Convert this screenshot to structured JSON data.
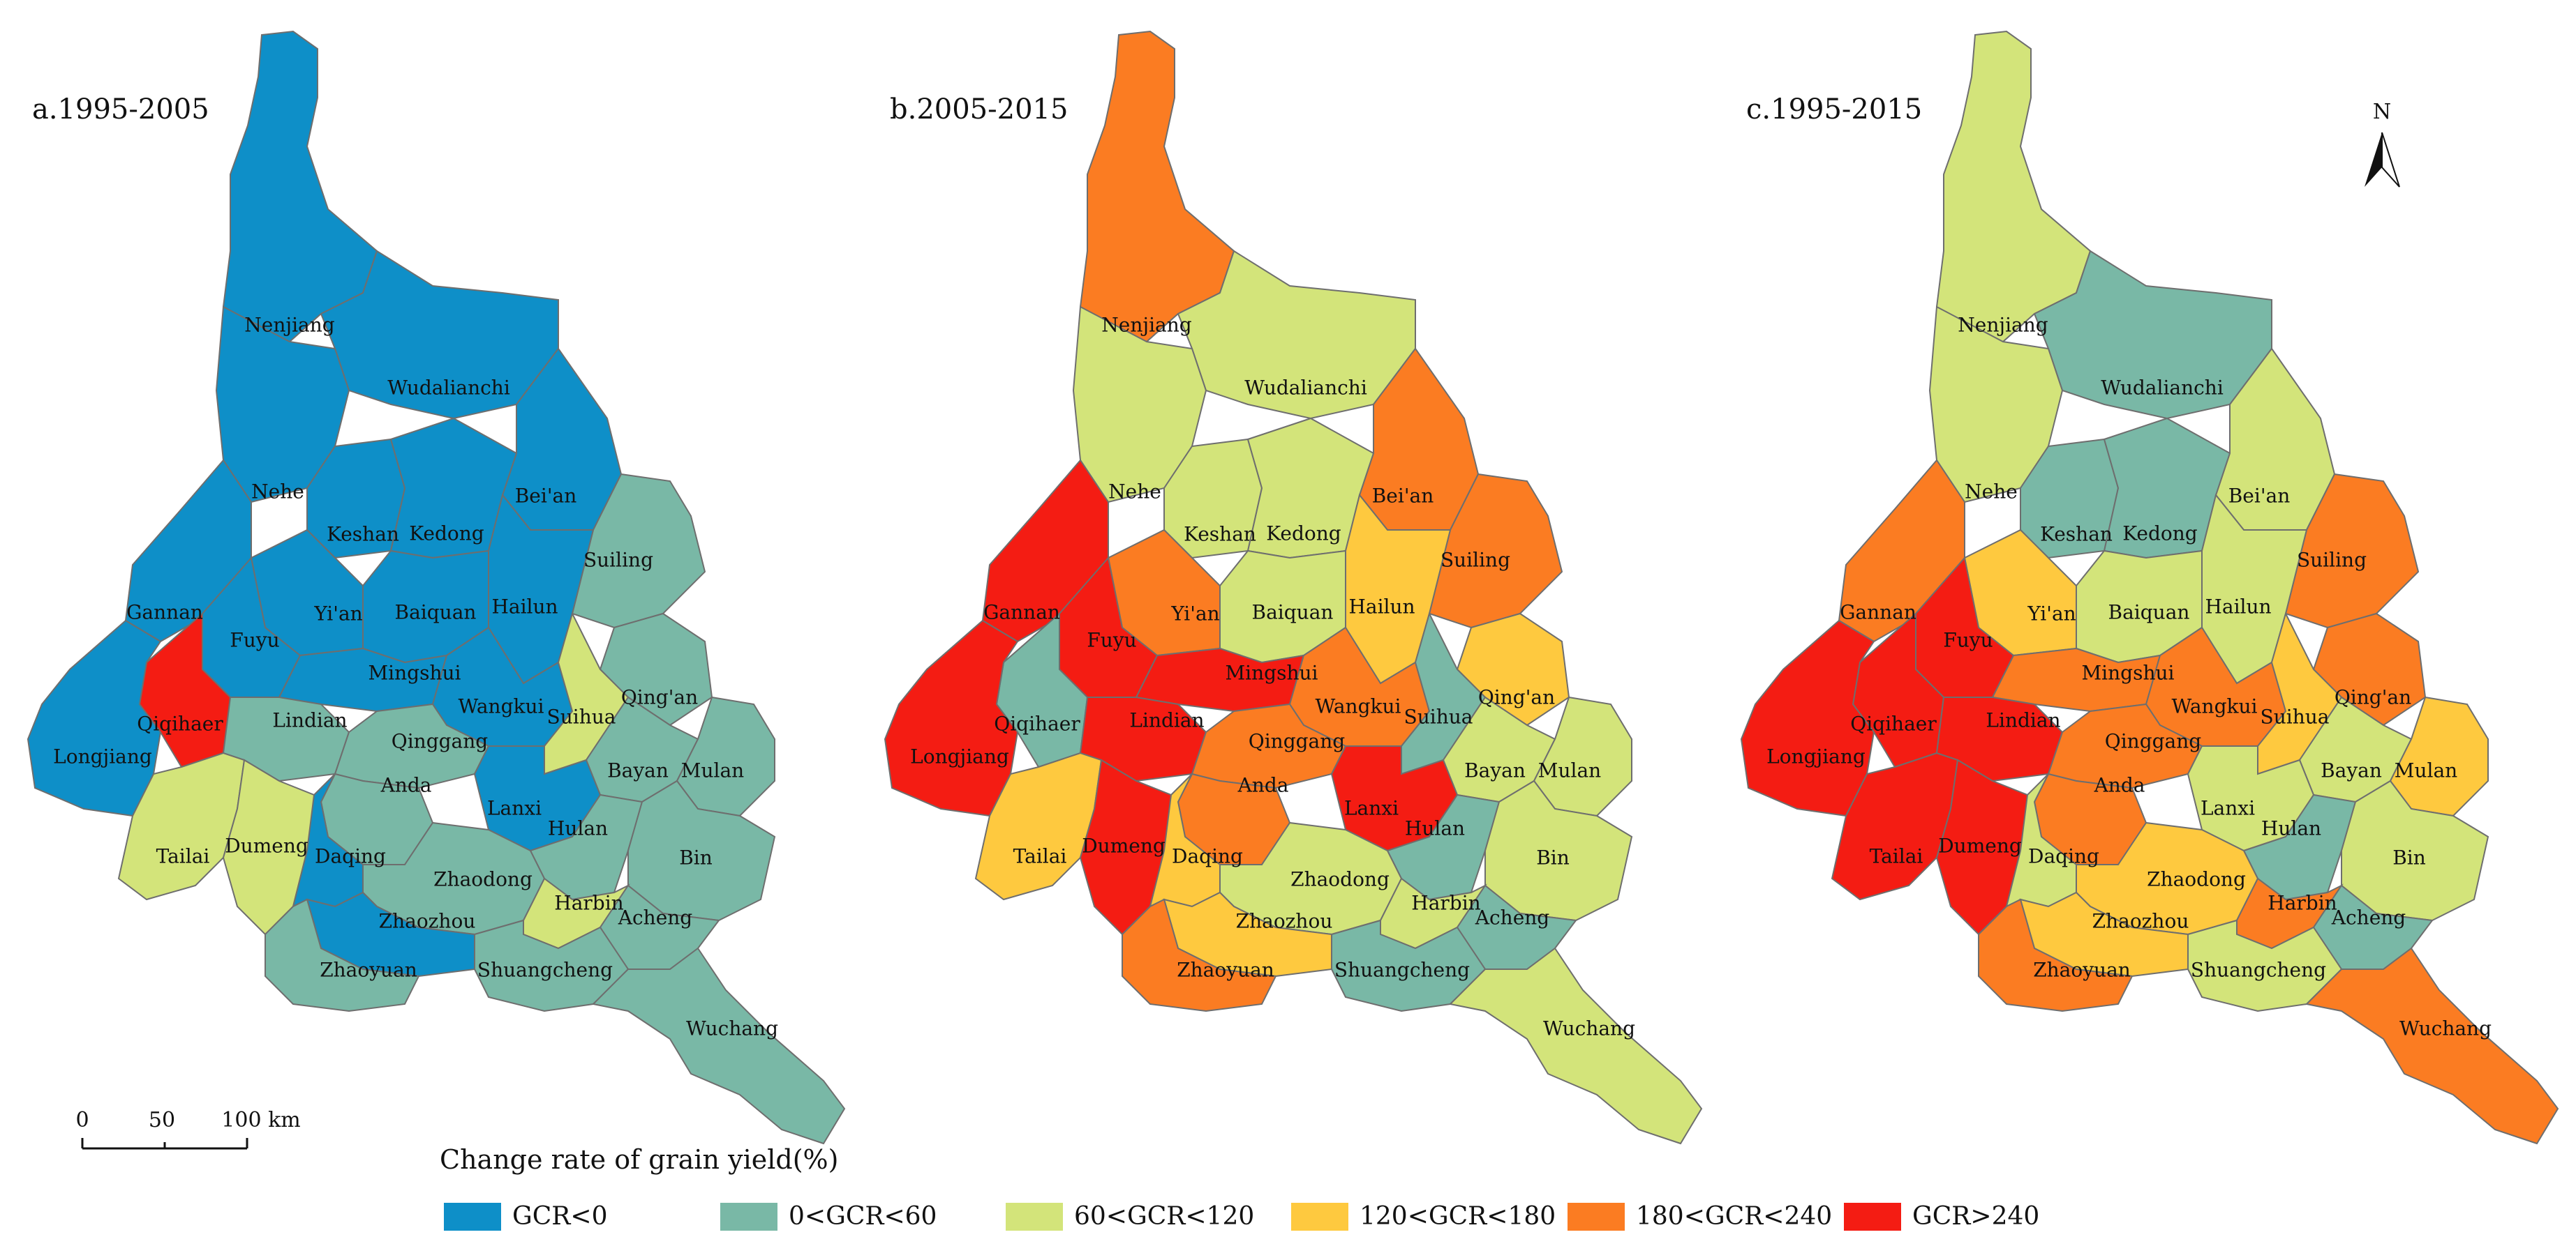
{
  "panels": [
    {
      "title": "a.1995-2005",
      "classes": {
        "Nenjiang": 0,
        "Wudalianchi": 0,
        "Nehe": 0,
        "Bei'an": 0,
        "Keshan": 0,
        "Kedong": 0,
        "Suiling": 1,
        "Gannan": 0,
        "Yi'an": 0,
        "Baiquan": 0,
        "Hailun": 0,
        "Fuyu": 0,
        "Mingshui": 0,
        "Qing'an": 1,
        "Qiqihaer": 5,
        "Lindian": 1,
        "Wangkui": 0,
        "Suihua": 2,
        "Longjiang": 0,
        "Qinggang": 1,
        "Bayan": 1,
        "Mulan": 1,
        "Anda": 1,
        "Lanxi": 0,
        "Hulan": 1,
        "Tailai": 2,
        "Dumeng": 2,
        "Daqing": 0,
        "Bin": 1,
        "Zhaodong": 1,
        "Harbin": 2,
        "Acheng": 1,
        "Zhaozhou": 0,
        "Zhaoyuan": 1,
        "Shuangcheng": 1,
        "Wuchang": 1
      }
    },
    {
      "title": "b.2005-2015",
      "classes": {
        "Nenjiang": 4,
        "Wudalianchi": 2,
        "Nehe": 2,
        "Bei'an": 4,
        "Keshan": 2,
        "Kedong": 2,
        "Suiling": 4,
        "Gannan": 5,
        "Yi'an": 4,
        "Baiquan": 2,
        "Hailun": 3,
        "Fuyu": 5,
        "Mingshui": 5,
        "Qing'an": 3,
        "Qiqihaer": 1,
        "Lindian": 5,
        "Wangkui": 4,
        "Suihua": 1,
        "Longjiang": 5,
        "Qinggang": 4,
        "Bayan": 2,
        "Mulan": 2,
        "Anda": 4,
        "Lanxi": 5,
        "Hulan": 1,
        "Tailai": 3,
        "Dumeng": 5,
        "Daqing": 3,
        "Bin": 2,
        "Zhaodong": 2,
        "Harbin": 2,
        "Acheng": 1,
        "Zhaozhou": 3,
        "Zhaoyuan": 4,
        "Shuangcheng": 1,
        "Wuchang": 2
      }
    },
    {
      "title": "c.1995-2015",
      "classes": {
        "Nenjiang": 2,
        "Wudalianchi": 1,
        "Nehe": 2,
        "Bei'an": 2,
        "Keshan": 1,
        "Kedong": 1,
        "Suiling": 4,
        "Gannan": 4,
        "Yi'an": 3,
        "Baiquan": 2,
        "Hailun": 2,
        "Fuyu": 5,
        "Mingshui": 4,
        "Qing'an": 4,
        "Qiqihaer": 5,
        "Lindian": 5,
        "Wangkui": 4,
        "Suihua": 3,
        "Longjiang": 5,
        "Qinggang": 4,
        "Bayan": 2,
        "Mulan": 3,
        "Anda": 4,
        "Lanxi": 2,
        "Hulan": 1,
        "Tailai": 5,
        "Dumeng": 5,
        "Daqing": 2,
        "Bin": 2,
        "Zhaodong": 3,
        "Harbin": 4,
        "Acheng": 1,
        "Zhaozhou": 3,
        "Zhaoyuan": 4,
        "Shuangcheng": 2,
        "Wuchang": 4
      }
    }
  ],
  "legend": {
    "title": "Change rate of grain yield(%)",
    "items": [
      {
        "label": "GCR<0",
        "color": "#0e8fc8"
      },
      {
        "label": "0<GCR<60",
        "color": "#79b8a6"
      },
      {
        "label": "60<GCR<120",
        "color": "#d3e47a"
      },
      {
        "label": "120<GCR<180",
        "color": "#fec93f"
      },
      {
        "label": "180<GCR<240",
        "color": "#fb7c22"
      },
      {
        "label": "GCR>240",
        "color": "#f41c13"
      }
    ]
  },
  "scale_bar": {
    "labels": [
      "0",
      "50",
      "100 km"
    ]
  },
  "north_arrow": {
    "label": "N"
  }
}
